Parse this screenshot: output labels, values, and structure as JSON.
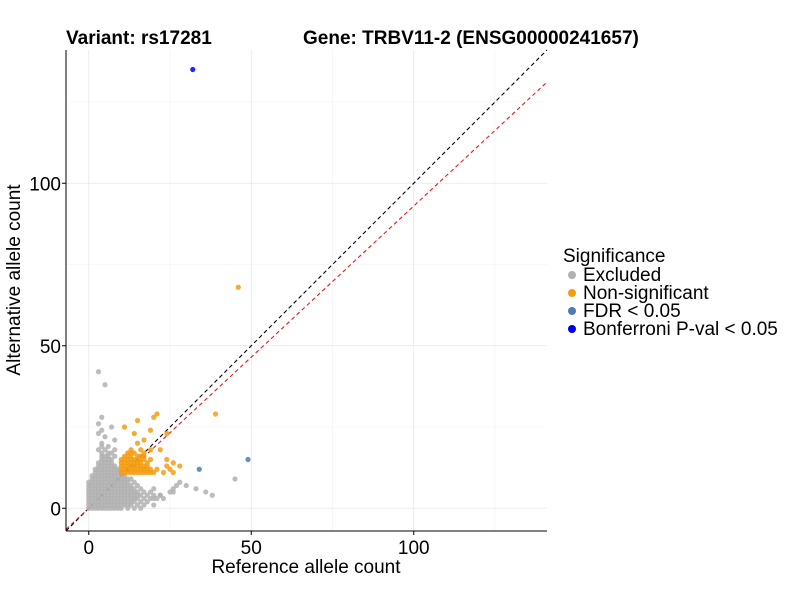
{
  "chart_data": {
    "type": "scatter",
    "title_left": "Variant: rs17281",
    "title_right": "Gene: TRBV11-2 (ENSG00000241657)",
    "xlabel": "Reference allele count",
    "ylabel": "Alternative allele count",
    "xlim": [
      -7,
      141
    ],
    "ylim": [
      -7,
      141
    ],
    "xticks": [
      0,
      50,
      100
    ],
    "yticks": [
      0,
      50,
      100
    ],
    "grid": true,
    "legend": {
      "title": "Significance",
      "position": "right",
      "entries": [
        {
          "label": "Excluded",
          "color": "#b2b2b2"
        },
        {
          "label": "Non-significant",
          "color": "#f39c12"
        },
        {
          "label": "FDR < 0.05",
          "color": "#4a7cb5"
        },
        {
          "label": "Bonferroni P-val < 0.05",
          "color": "#0000ee"
        }
      ]
    },
    "reference_lines": [
      {
        "name": "identity",
        "slope": 1,
        "intercept": 0,
        "color": "#000000",
        "dash": true
      },
      {
        "name": "fitted",
        "slope": 0.93,
        "intercept": 0,
        "color": "#e41a1c",
        "dash": true
      }
    ],
    "series": [
      {
        "name": "Excluded",
        "color": "#b2b2b2",
        "points": [
          [
            0,
            0
          ],
          [
            1,
            0
          ],
          [
            2,
            0
          ],
          [
            3,
            0
          ],
          [
            4,
            0
          ],
          [
            5,
            0
          ],
          [
            6,
            0
          ],
          [
            7,
            0
          ],
          [
            8,
            0
          ],
          [
            9,
            0
          ],
          [
            10,
            0
          ],
          [
            12,
            0
          ],
          [
            14,
            0
          ],
          [
            16,
            0
          ],
          [
            17,
            1
          ],
          [
            20,
            1
          ],
          [
            0,
            1
          ],
          [
            1,
            1
          ],
          [
            2,
            1
          ],
          [
            3,
            1
          ],
          [
            4,
            1
          ],
          [
            5,
            1
          ],
          [
            6,
            1
          ],
          [
            7,
            1
          ],
          [
            8,
            1
          ],
          [
            9,
            1
          ],
          [
            10,
            1
          ],
          [
            11,
            1
          ],
          [
            12,
            1
          ],
          [
            13,
            1
          ],
          [
            15,
            1
          ],
          [
            18,
            2
          ],
          [
            0,
            2
          ],
          [
            1,
            2
          ],
          [
            2,
            2
          ],
          [
            3,
            2
          ],
          [
            4,
            2
          ],
          [
            5,
            2
          ],
          [
            6,
            2
          ],
          [
            7,
            2
          ],
          [
            8,
            2
          ],
          [
            9,
            2
          ],
          [
            10,
            2
          ],
          [
            11,
            2
          ],
          [
            12,
            2
          ],
          [
            13,
            2
          ],
          [
            14,
            2
          ],
          [
            16,
            2
          ],
          [
            0,
            3
          ],
          [
            1,
            3
          ],
          [
            2,
            3
          ],
          [
            3,
            3
          ],
          [
            4,
            3
          ],
          [
            5,
            3
          ],
          [
            6,
            3
          ],
          [
            7,
            3
          ],
          [
            8,
            3
          ],
          [
            9,
            3
          ],
          [
            10,
            3
          ],
          [
            11,
            3
          ],
          [
            12,
            3
          ],
          [
            13,
            3
          ],
          [
            14,
            3
          ],
          [
            15,
            3
          ],
          [
            17,
            3
          ],
          [
            19,
            3
          ],
          [
            21,
            3
          ],
          [
            23,
            3
          ],
          [
            0,
            4
          ],
          [
            1,
            4
          ],
          [
            2,
            4
          ],
          [
            3,
            4
          ],
          [
            4,
            4
          ],
          [
            5,
            4
          ],
          [
            6,
            4
          ],
          [
            7,
            4
          ],
          [
            8,
            4
          ],
          [
            9,
            4
          ],
          [
            10,
            4
          ],
          [
            11,
            4
          ],
          [
            12,
            4
          ],
          [
            13,
            4
          ],
          [
            14,
            4
          ],
          [
            15,
            4
          ],
          [
            16,
            4
          ],
          [
            18,
            4
          ],
          [
            20,
            4
          ],
          [
            22,
            4
          ],
          [
            0,
            5
          ],
          [
            1,
            5
          ],
          [
            2,
            5
          ],
          [
            3,
            5
          ],
          [
            4,
            5
          ],
          [
            5,
            5
          ],
          [
            6,
            5
          ],
          [
            7,
            5
          ],
          [
            8,
            5
          ],
          [
            9,
            5
          ],
          [
            10,
            5
          ],
          [
            11,
            5
          ],
          [
            12,
            5
          ],
          [
            13,
            5
          ],
          [
            14,
            5
          ],
          [
            15,
            5
          ],
          [
            17,
            5
          ],
          [
            19,
            5
          ],
          [
            25,
            5
          ],
          [
            0,
            6
          ],
          [
            1,
            6
          ],
          [
            2,
            6
          ],
          [
            3,
            6
          ],
          [
            4,
            6
          ],
          [
            5,
            6
          ],
          [
            6,
            6
          ],
          [
            7,
            6
          ],
          [
            8,
            6
          ],
          [
            9,
            6
          ],
          [
            10,
            6
          ],
          [
            11,
            6
          ],
          [
            12,
            6
          ],
          [
            13,
            6
          ],
          [
            14,
            6
          ],
          [
            16,
            6
          ],
          [
            20,
            6
          ],
          [
            26,
            6
          ],
          [
            0,
            7
          ],
          [
            1,
            7
          ],
          [
            2,
            7
          ],
          [
            3,
            7
          ],
          [
            4,
            7
          ],
          [
            5,
            7
          ],
          [
            6,
            7
          ],
          [
            7,
            7
          ],
          [
            8,
            7
          ],
          [
            9,
            7
          ],
          [
            10,
            7
          ],
          [
            11,
            7
          ],
          [
            12,
            7
          ],
          [
            13,
            7
          ],
          [
            15,
            7
          ],
          [
            27,
            7
          ],
          [
            0,
            8
          ],
          [
            1,
            8
          ],
          [
            2,
            8
          ],
          [
            3,
            8
          ],
          [
            4,
            8
          ],
          [
            5,
            8
          ],
          [
            6,
            8
          ],
          [
            7,
            8
          ],
          [
            8,
            8
          ],
          [
            9,
            8
          ],
          [
            10,
            8
          ],
          [
            11,
            8
          ],
          [
            12,
            8
          ],
          [
            14,
            8
          ],
          [
            28,
            8
          ],
          [
            1,
            9
          ],
          [
            2,
            9
          ],
          [
            3,
            9
          ],
          [
            4,
            9
          ],
          [
            5,
            9
          ],
          [
            6,
            9
          ],
          [
            7,
            9
          ],
          [
            8,
            9
          ],
          [
            9,
            9
          ],
          [
            10,
            9
          ],
          [
            11,
            9
          ],
          [
            12,
            9
          ],
          [
            13,
            9
          ],
          [
            1,
            10
          ],
          [
            2,
            10
          ],
          [
            3,
            10
          ],
          [
            4,
            10
          ],
          [
            5,
            10
          ],
          [
            6,
            10
          ],
          [
            7,
            10
          ],
          [
            8,
            10
          ],
          [
            9,
            10
          ],
          [
            10,
            10
          ],
          [
            11,
            10
          ],
          [
            2,
            11
          ],
          [
            3,
            11
          ],
          [
            4,
            11
          ],
          [
            5,
            11
          ],
          [
            6,
            11
          ],
          [
            7,
            11
          ],
          [
            8,
            11
          ],
          [
            9,
            11
          ],
          [
            10,
            11
          ],
          [
            2,
            12
          ],
          [
            3,
            12
          ],
          [
            4,
            12
          ],
          [
            5,
            12
          ],
          [
            6,
            12
          ],
          [
            7,
            12
          ],
          [
            8,
            12
          ],
          [
            9,
            12
          ],
          [
            3,
            13
          ],
          [
            4,
            13
          ],
          [
            5,
            13
          ],
          [
            6,
            13
          ],
          [
            7,
            13
          ],
          [
            8,
            13
          ],
          [
            3,
            14
          ],
          [
            4,
            14
          ],
          [
            5,
            14
          ],
          [
            6,
            14
          ],
          [
            7,
            14
          ],
          [
            4,
            15
          ],
          [
            5,
            15
          ],
          [
            6,
            15
          ],
          [
            7,
            15
          ],
          [
            4,
            16
          ],
          [
            5,
            16
          ],
          [
            6,
            16
          ],
          [
            8,
            16
          ],
          [
            4,
            17
          ],
          [
            6,
            17
          ],
          [
            7,
            17
          ],
          [
            3,
            18
          ],
          [
            5,
            18
          ],
          [
            8,
            18
          ],
          [
            4,
            19
          ],
          [
            6,
            19
          ],
          [
            4,
            20
          ],
          [
            8,
            21
          ],
          [
            5,
            22
          ],
          [
            3,
            23
          ],
          [
            4,
            24
          ],
          [
            7,
            25
          ],
          [
            3,
            26
          ],
          [
            4,
            28
          ],
          [
            45,
            9
          ],
          [
            36,
            5
          ],
          [
            33,
            6
          ],
          [
            30,
            7
          ],
          [
            38,
            4
          ],
          [
            26,
            5
          ],
          [
            22,
            4
          ],
          [
            20,
            3
          ],
          [
            3,
            42
          ],
          [
            5,
            38
          ]
        ]
      },
      {
        "name": "Non-significant",
        "color": "#f39c12",
        "points": [
          [
            10,
            11
          ],
          [
            11,
            11
          ],
          [
            12,
            11
          ],
          [
            13,
            11
          ],
          [
            14,
            11
          ],
          [
            15,
            11
          ],
          [
            16,
            11
          ],
          [
            17,
            11
          ],
          [
            18,
            11
          ],
          [
            19,
            11
          ],
          [
            20,
            11
          ],
          [
            10,
            12
          ],
          [
            11,
            12
          ],
          [
            12,
            12
          ],
          [
            13,
            12
          ],
          [
            14,
            12
          ],
          [
            15,
            12
          ],
          [
            16,
            12
          ],
          [
            17,
            12
          ],
          [
            18,
            12
          ],
          [
            19,
            12
          ],
          [
            21,
            12
          ],
          [
            10,
            13
          ],
          [
            11,
            13
          ],
          [
            12,
            13
          ],
          [
            13,
            13
          ],
          [
            14,
            13
          ],
          [
            15,
            13
          ],
          [
            16,
            13
          ],
          [
            17,
            13
          ],
          [
            18,
            13
          ],
          [
            10,
            14
          ],
          [
            11,
            14
          ],
          [
            12,
            14
          ],
          [
            13,
            14
          ],
          [
            14,
            14
          ],
          [
            15,
            14
          ],
          [
            16,
            14
          ],
          [
            18,
            14
          ],
          [
            10,
            15
          ],
          [
            11,
            15
          ],
          [
            12,
            15
          ],
          [
            13,
            15
          ],
          [
            14,
            15
          ],
          [
            15,
            15
          ],
          [
            16,
            15
          ],
          [
            17,
            15
          ],
          [
            19,
            15
          ],
          [
            11,
            16
          ],
          [
            12,
            16
          ],
          [
            13,
            16
          ],
          [
            15,
            16
          ],
          [
            16,
            16
          ],
          [
            17,
            16
          ],
          [
            12,
            17
          ],
          [
            13,
            17
          ],
          [
            14,
            17
          ],
          [
            17,
            17
          ],
          [
            13,
            18
          ],
          [
            16,
            18
          ],
          [
            19,
            18
          ],
          [
            22,
            18
          ],
          [
            15,
            20
          ],
          [
            17,
            21
          ],
          [
            23,
            11
          ],
          [
            24,
            13
          ],
          [
            24,
            15
          ],
          [
            25,
            12
          ],
          [
            26,
            14
          ],
          [
            28,
            13
          ],
          [
            26,
            11
          ],
          [
            11,
            25
          ],
          [
            14,
            23
          ],
          [
            15,
            27
          ],
          [
            19,
            24
          ],
          [
            20,
            28
          ],
          [
            21,
            29
          ],
          [
            24,
            23
          ],
          [
            39,
            29
          ],
          [
            46,
            68
          ]
        ]
      },
      {
        "name": "FDR < 0.05",
        "color": "#4a7cb5",
        "points": [
          [
            34,
            12
          ],
          [
            49,
            15
          ]
        ]
      },
      {
        "name": "Bonferroni P-val < 0.05",
        "color": "#0000ee",
        "points": [
          [
            32,
            135
          ]
        ]
      }
    ]
  }
}
